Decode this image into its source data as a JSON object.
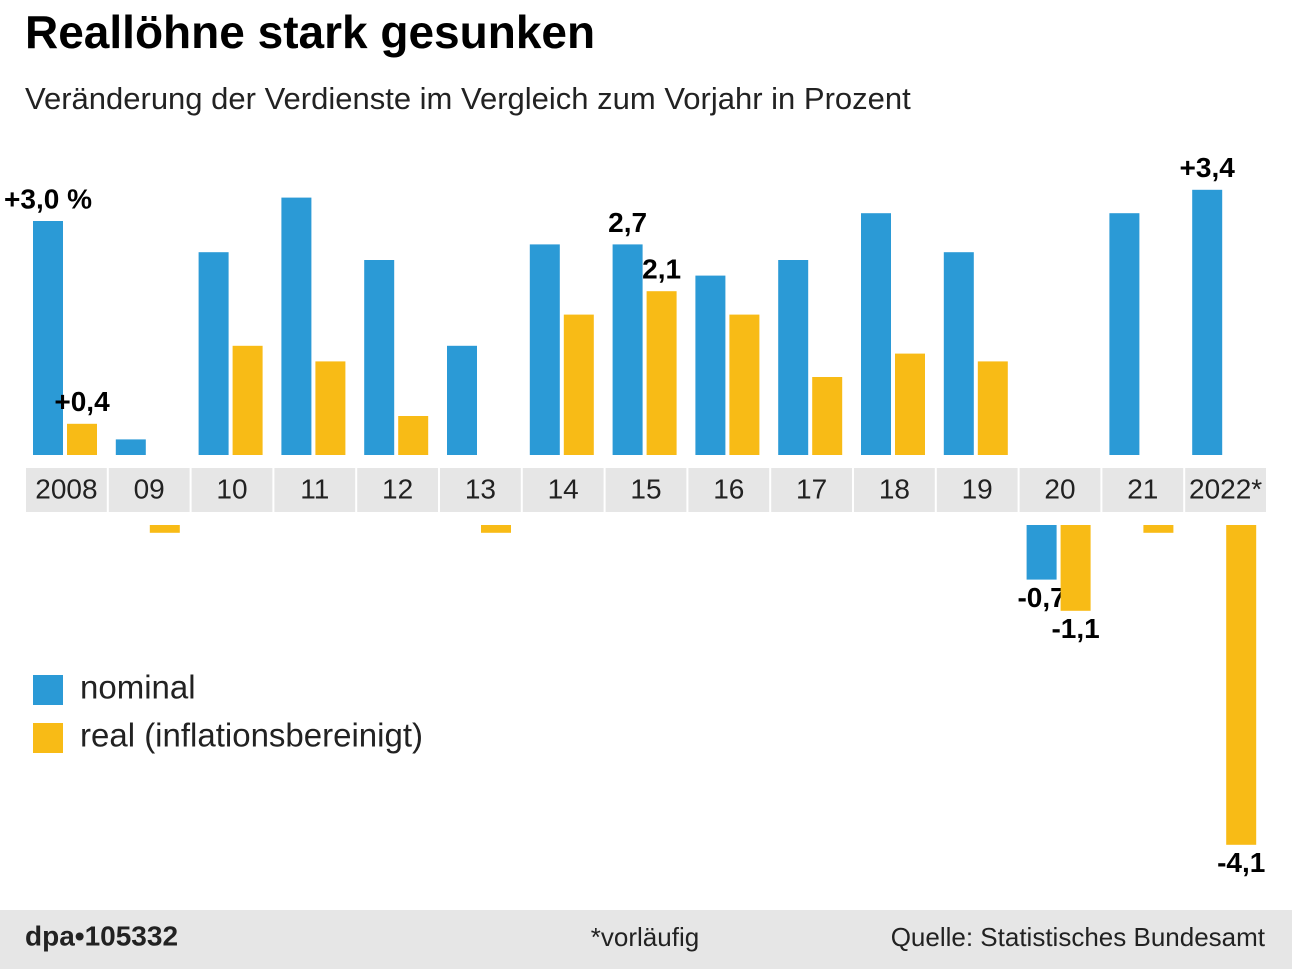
{
  "chart_data": {
    "type": "bar",
    "title": "Reallöhne stark gesunken",
    "subtitle": "Veränderung der Verdienste im Vergleich zum Vorjahr in Prozent",
    "categories": [
      "2008",
      "09",
      "10",
      "11",
      "12",
      "13",
      "14",
      "15",
      "16",
      "17",
      "18",
      "19",
      "20",
      "21",
      "2022*"
    ],
    "series": [
      {
        "name": "nominal",
        "color": "#2b9ad6",
        "values": [
          3.0,
          0.2,
          2.6,
          3.3,
          2.5,
          1.4,
          2.7,
          2.7,
          2.3,
          2.5,
          3.1,
          2.6,
          -0.7,
          3.1,
          3.4
        ],
        "value_labels": [
          "+3,0 %",
          null,
          null,
          null,
          null,
          null,
          null,
          "2,7",
          null,
          null,
          null,
          null,
          "-0,7",
          null,
          "+3,4"
        ]
      },
      {
        "name": "real (inflationsbereinigt)",
        "color": "#f8bb16",
        "values": [
          0.4,
          -0.1,
          1.4,
          1.2,
          0.5,
          -0.1,
          1.8,
          2.1,
          1.8,
          1.0,
          1.3,
          1.2,
          -1.1,
          -0.1,
          -4.1
        ],
        "value_labels": [
          "+0,4",
          null,
          null,
          null,
          null,
          null,
          null,
          "2,1",
          null,
          null,
          null,
          null,
          "-1,1",
          null,
          "-4,1"
        ]
      }
    ],
    "credit": "dpa•105332",
    "note": "*vorläufig",
    "source": "Quelle: Statistisches Bundesamt"
  }
}
